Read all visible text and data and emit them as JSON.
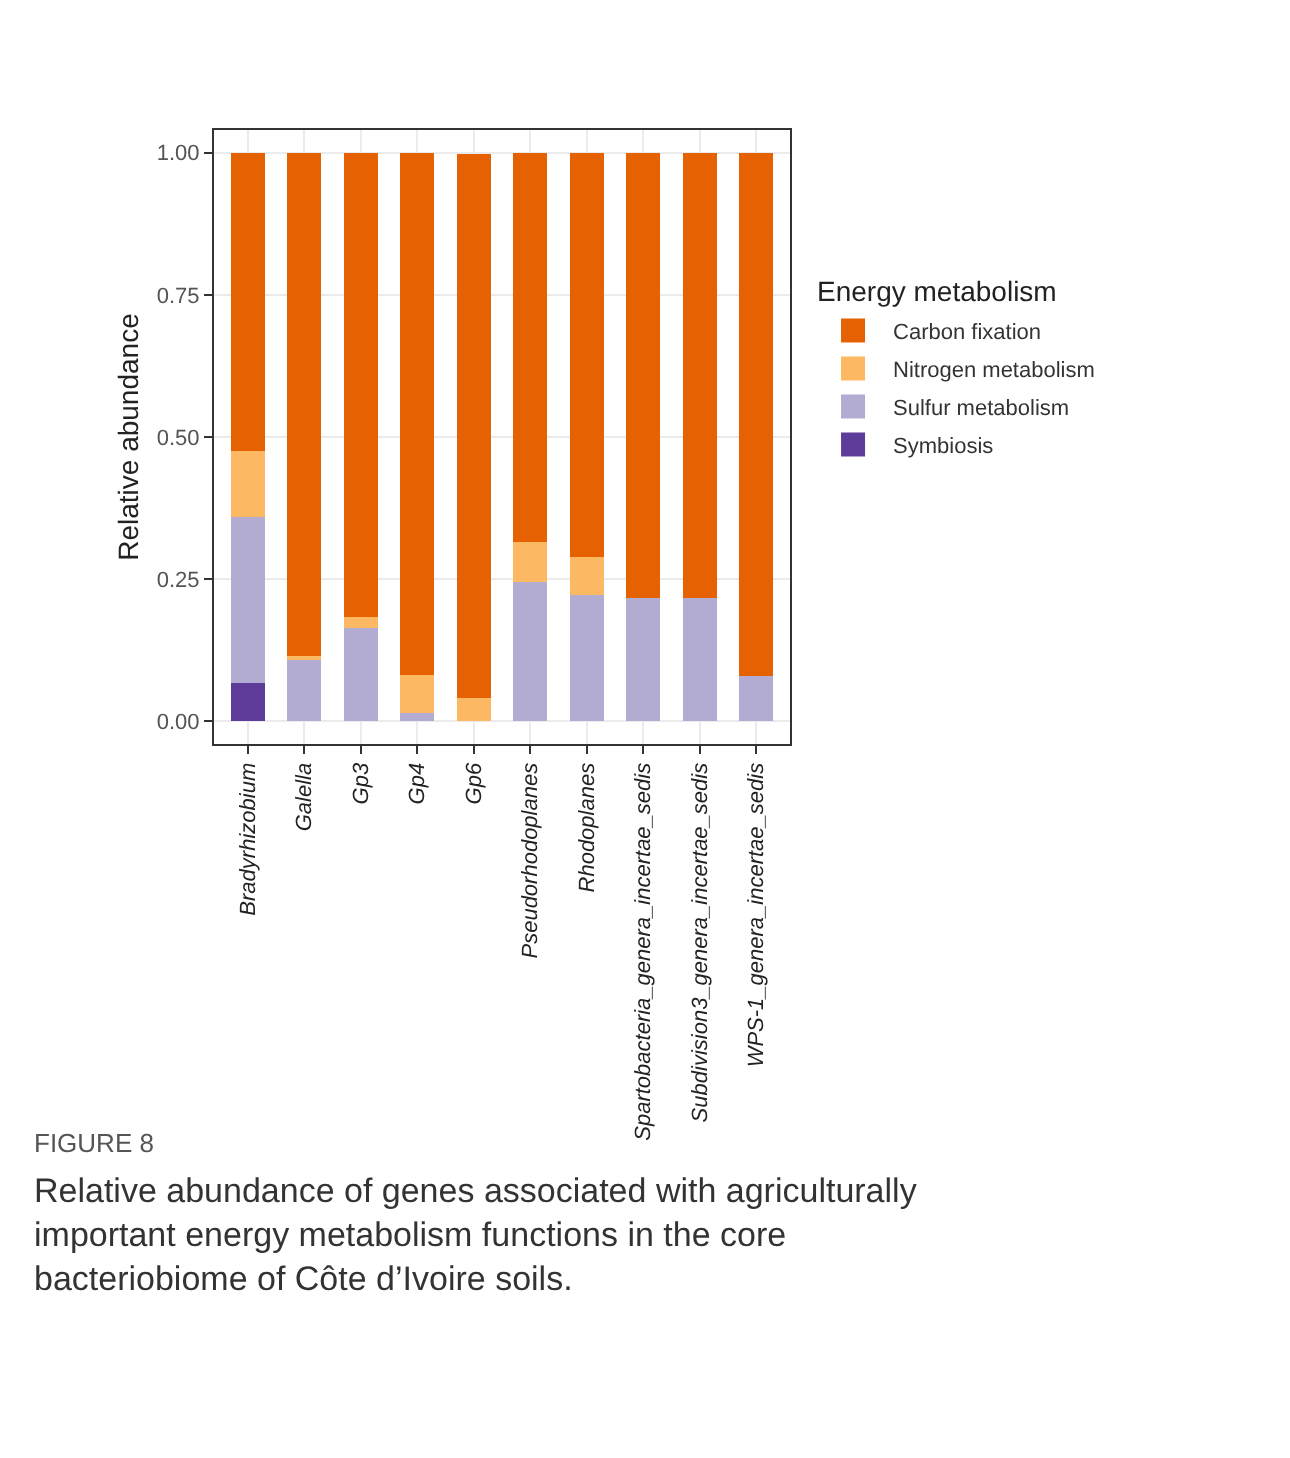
{
  "chart_data": {
    "type": "bar",
    "stacked": true,
    "ylabel": "Relative abundance",
    "legend_title": "Energy metabolism",
    "legend": "right",
    "grid": true,
    "categories": [
      "Bradyrhizobium",
      "Galella",
      "Gp3",
      "Gp4",
      "Gp6",
      "Pseudorhodoplanes",
      "Rhodoplanes",
      "Spartobacteria_genera_incertae_sedis",
      "Subdivision3_genera_incertae_sedis",
      "WPS-1_genera_incertae_sedis"
    ],
    "series": [
      {
        "name": "Symbiosis",
        "color": "#5e3c99",
        "values": [
          0.067,
          0,
          0,
          0,
          0,
          0,
          0,
          0,
          0,
          0
        ]
      },
      {
        "name": "Sulfur metabolism",
        "color": "#b2abd2",
        "values": [
          0.293,
          0.11,
          0.164,
          0.015,
          null,
          0.245,
          0.222,
          0.217,
          0.217,
          0.08
        ]
      },
      {
        "name": "Nitrogen metabolism",
        "color": "#fdb863",
        "values": [
          0.116,
          0.004,
          0.019,
          0.066,
          0.041,
          0.071,
          0.067,
          0,
          0,
          0
        ]
      },
      {
        "name": "Carbon fixation",
        "color": "#e66101",
        "values": [
          0.524,
          0.886,
          0.817,
          0.919,
          0.957,
          0.684,
          0.711,
          0.783,
          0.783,
          0.92
        ]
      }
    ],
    "ylim": [
      -0.04,
      1.04
    ],
    "yticks": [
      {
        "value": 0,
        "label": "0.00"
      },
      {
        "value": 0.25,
        "label": "0.25"
      },
      {
        "value": 0.5,
        "label": "0.50"
      },
      {
        "value": 0.75,
        "label": "0.75"
      },
      {
        "value": 1,
        "label": "1.00"
      }
    ],
    "annotations": [
      "FIGURE 8",
      "Relative abundance of genes associated with agriculturally important energy metabolism functions in the core bacteriobiome of Côte d’Ivoire soils."
    ]
  }
}
